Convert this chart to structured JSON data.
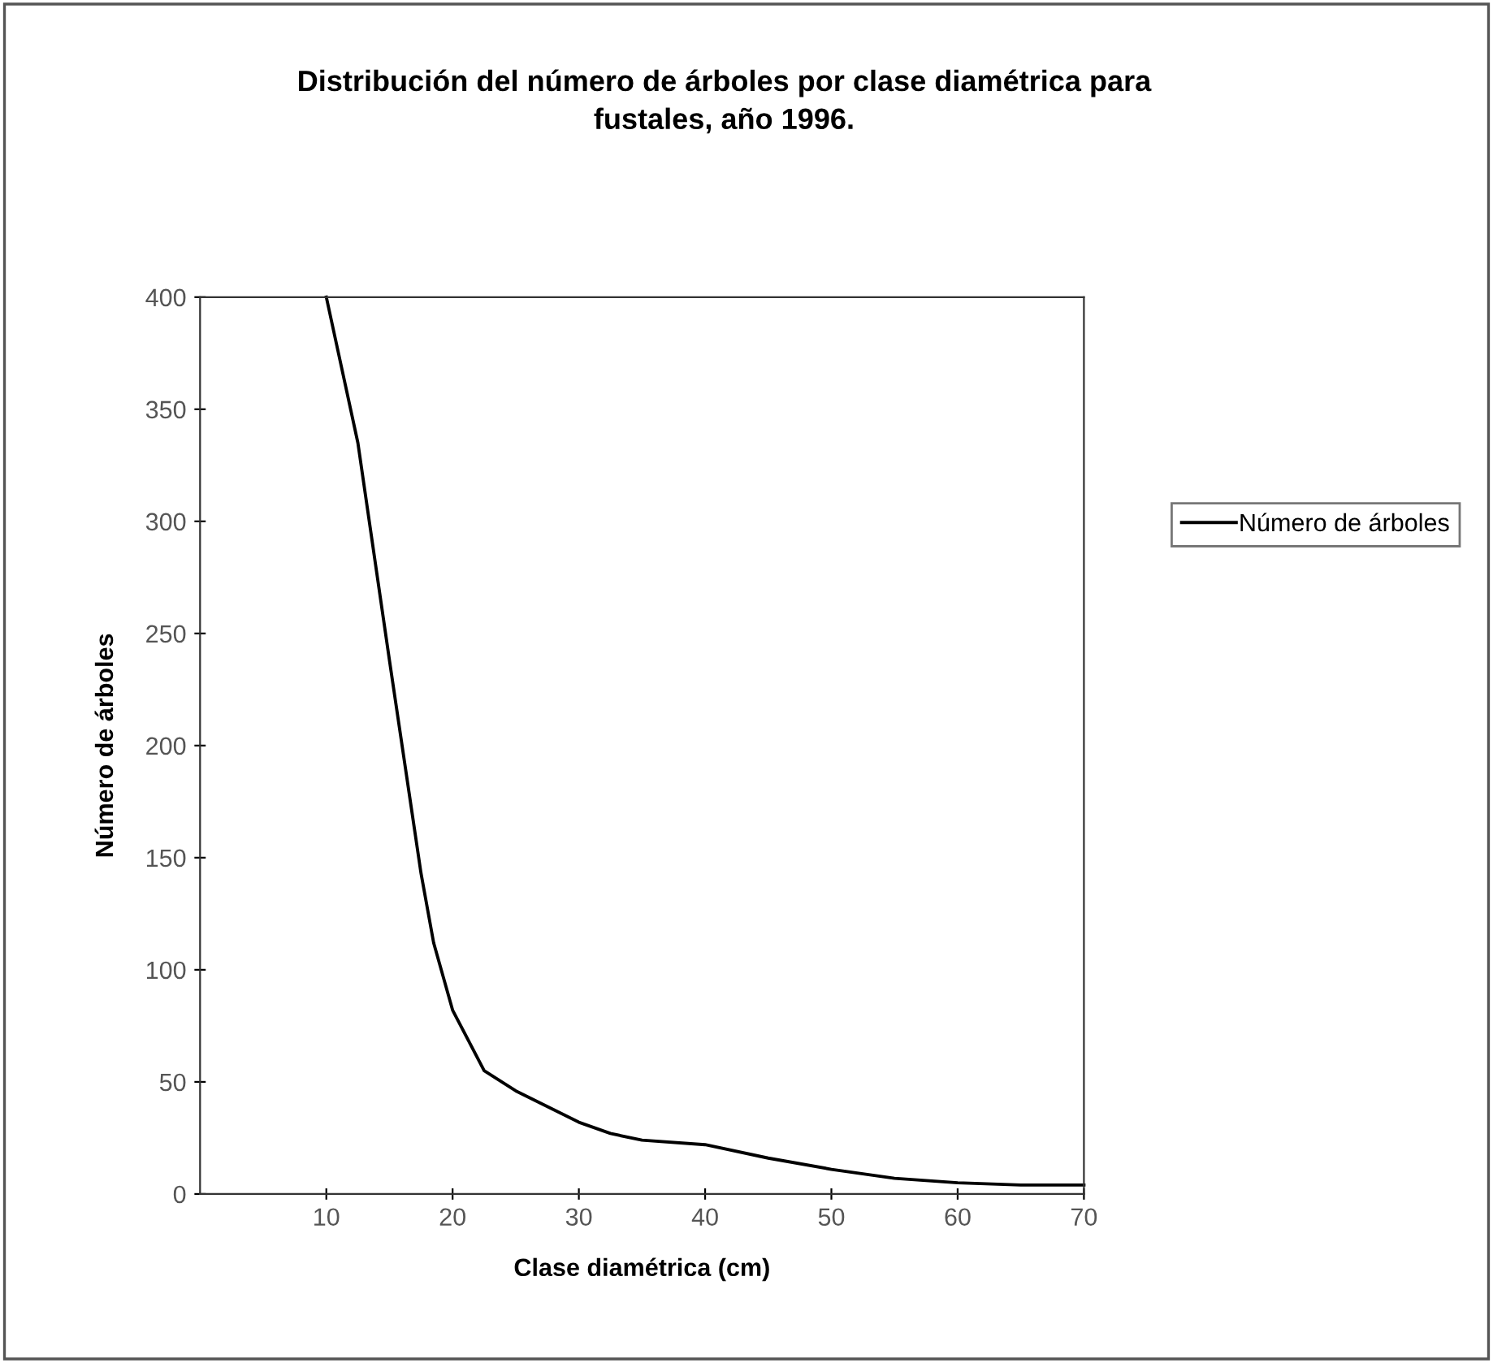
{
  "chart_data": {
    "type": "line",
    "title": "Distribución del número de árboles por clase diamétrica para\nfustales, año 1996.",
    "xlabel": "Clase diamétrica (cm)",
    "ylabel": "Número de árboles",
    "x": [
      10,
      12.5,
      15,
      17.5,
      18.5,
      20,
      22.5,
      25,
      30,
      32.5,
      35,
      40,
      45,
      50,
      55,
      60,
      65,
      70
    ],
    "series": [
      {
        "name": "Número de árboles",
        "color": "#000000",
        "values": [
          400,
          335,
          238,
          143,
          112,
          82,
          55,
          46,
          32,
          27,
          24,
          22,
          16,
          11,
          7,
          5,
          4,
          4
        ]
      }
    ],
    "xlim": [
      0,
      70
    ],
    "xticks": [
      10,
      20,
      30,
      40,
      50,
      60,
      70
    ],
    "ylim": [
      0,
      400
    ],
    "yticks": [
      0,
      50,
      100,
      150,
      200,
      250,
      300,
      350,
      400
    ],
    "grid": false,
    "legend": "right",
    "marker": "none",
    "line_style": "solid"
  }
}
